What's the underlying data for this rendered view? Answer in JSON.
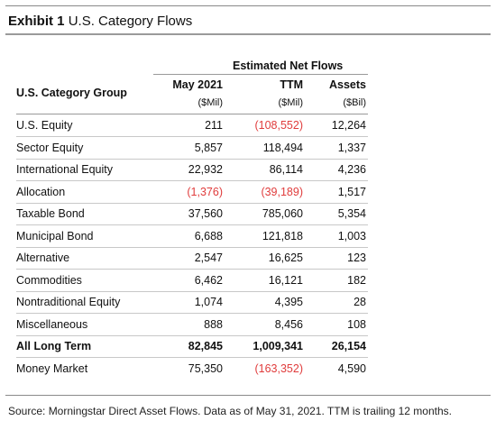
{
  "exhibit": {
    "number": "Exhibit 1",
    "title": "U.S. Category Flows"
  },
  "table": {
    "group_header": "Estimated Net Flows",
    "row_header": "U.S. Category Group",
    "columns": [
      {
        "label": "May 2021",
        "unit": "($Mil)"
      },
      {
        "label": "TTM",
        "unit": "($Mil)"
      },
      {
        "label": "Assets",
        "unit": "($Bil)"
      }
    ],
    "rows": [
      {
        "name": "U.S. Equity",
        "may": "211",
        "ttm": "(108,552)",
        "assets": "12,264",
        "neg_may": false,
        "neg_ttm": true,
        "bold": false
      },
      {
        "name": "Sector Equity",
        "may": "5,857",
        "ttm": "118,494",
        "assets": "1,337",
        "neg_may": false,
        "neg_ttm": false,
        "bold": false
      },
      {
        "name": "International Equity",
        "may": "22,932",
        "ttm": "86,114",
        "assets": "4,236",
        "neg_may": false,
        "neg_ttm": false,
        "bold": false
      },
      {
        "name": "Allocation",
        "may": "(1,376)",
        "ttm": "(39,189)",
        "assets": "1,517",
        "neg_may": true,
        "neg_ttm": true,
        "bold": false
      },
      {
        "name": "Taxable Bond",
        "may": "37,560",
        "ttm": "785,060",
        "assets": "5,354",
        "neg_may": false,
        "neg_ttm": false,
        "bold": false
      },
      {
        "name": "Municipal Bond",
        "may": "6,688",
        "ttm": "121,818",
        "assets": "1,003",
        "neg_may": false,
        "neg_ttm": false,
        "bold": false
      },
      {
        "name": "Alternative",
        "may": "2,547",
        "ttm": "16,625",
        "assets": "123",
        "neg_may": false,
        "neg_ttm": false,
        "bold": false
      },
      {
        "name": "Commodities",
        "may": "6,462",
        "ttm": "16,121",
        "assets": "182",
        "neg_may": false,
        "neg_ttm": false,
        "bold": false
      },
      {
        "name": "Nontraditional Equity",
        "may": "1,074",
        "ttm": "4,395",
        "assets": "28",
        "neg_may": false,
        "neg_ttm": false,
        "bold": false
      },
      {
        "name": "Miscellaneous",
        "may": "888",
        "ttm": "8,456",
        "assets": "108",
        "neg_may": false,
        "neg_ttm": false,
        "bold": false
      },
      {
        "name": "All Long Term",
        "may": "82,845",
        "ttm": "1,009,341",
        "assets": "26,154",
        "neg_may": false,
        "neg_ttm": false,
        "bold": true
      },
      {
        "name": "Money Market",
        "may": "75,350",
        "ttm": "(163,352)",
        "assets": "4,590",
        "neg_may": false,
        "neg_ttm": true,
        "bold": false
      }
    ]
  },
  "source": "Source: Morningstar Direct Asset Flows. Data as of May 31, 2021. TTM is trailing 12 months.",
  "colors": {
    "negative": "#e03c3c",
    "rule": "#8a8a8a",
    "row_divider": "#c8c8c8"
  }
}
